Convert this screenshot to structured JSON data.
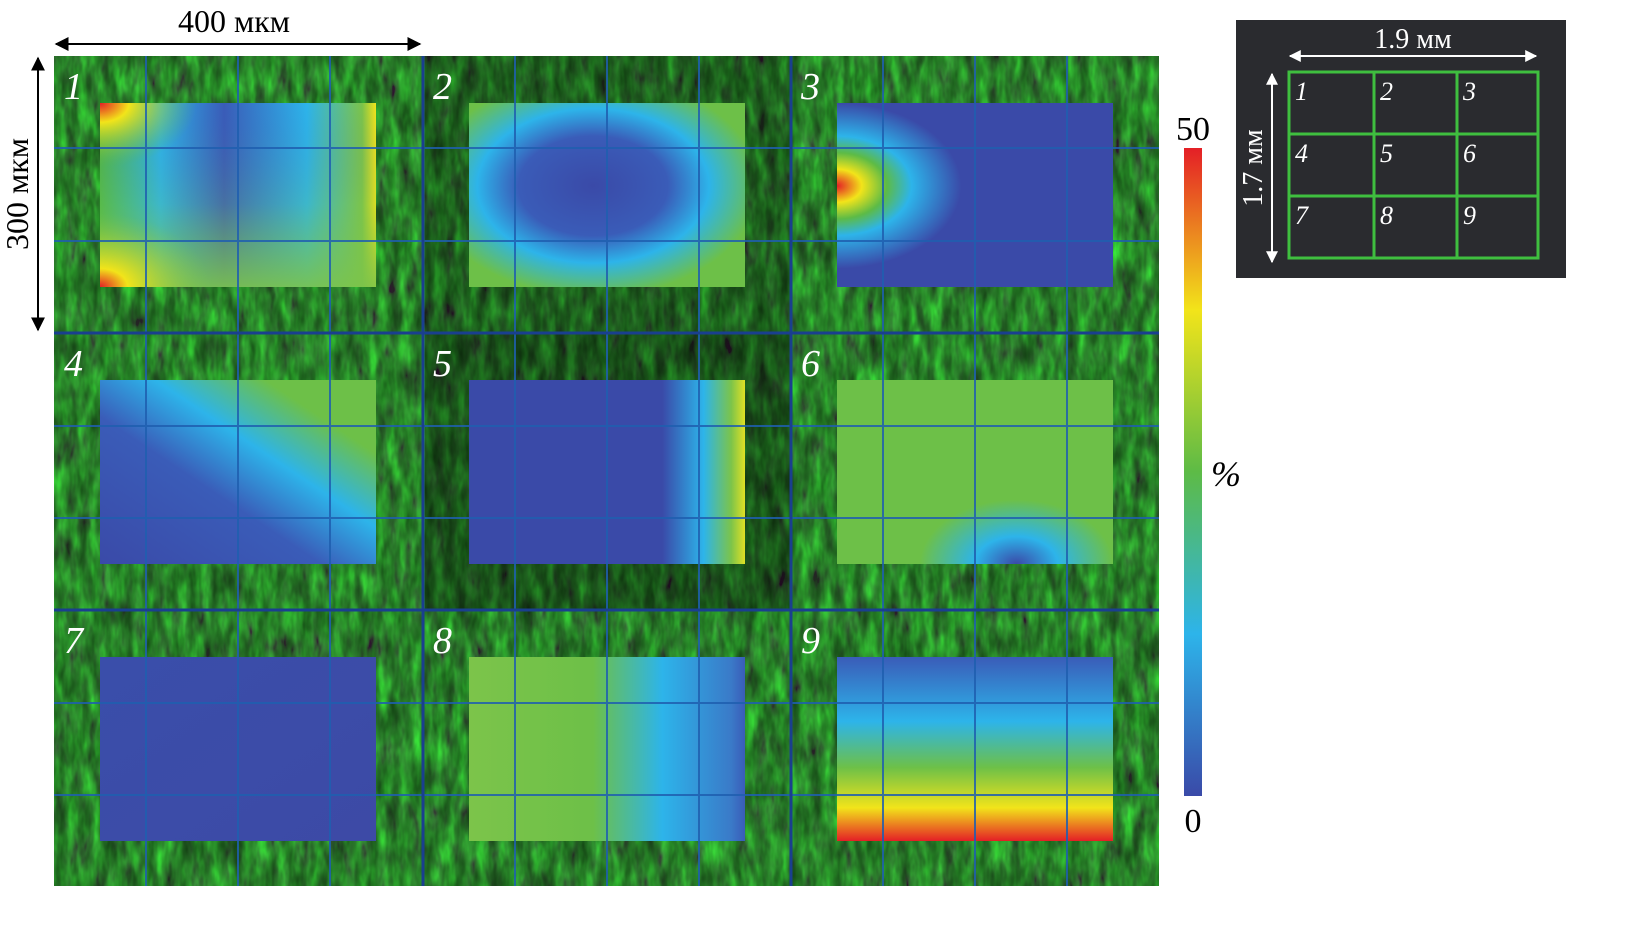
{
  "scale_bars": {
    "horizontal_label": "400 мкм",
    "vertical_label": "300 мкм"
  },
  "panels": [
    {
      "number": "1",
      "deformation_map": "hot top-left and bottom-left corners, yellow right edge, blue band across upper centre"
    },
    {
      "number": "2",
      "deformation_map": "green frame with blue diagonal region in centre"
    },
    {
      "number": "3",
      "deformation_map": "red spot at left edge, remainder blue"
    },
    {
      "number": "4",
      "deformation_map": "blue left and lower region, green upper-right"
    },
    {
      "number": "5",
      "deformation_map": "blue with green-yellow right edge"
    },
    {
      "number": "6",
      "deformation_map": "green with blue spot at bottom centre"
    },
    {
      "number": "7",
      "deformation_map": "uniform blue"
    },
    {
      "number": "8",
      "deformation_map": "green left, light blue right"
    },
    {
      "number": "9",
      "deformation_map": "blue upper band, red-yellow strip at bottom"
    }
  ],
  "colorbar": {
    "max_label": "50",
    "min_label": "0",
    "unit_label": "%",
    "range": [
      0,
      50
    ],
    "colors": [
      "#3a4aa8",
      "#2db4ea",
      "#5dbb46",
      "#f2e41a",
      "#e41f26"
    ]
  },
  "inset": {
    "width_label": "1.9 мм",
    "height_label": "1.7 мм",
    "cells": [
      "1",
      "2",
      "3",
      "4",
      "5",
      "6",
      "7",
      "8",
      "9"
    ],
    "grid_color": "#3fbf3f",
    "background_color": "#2a2b2f"
  }
}
